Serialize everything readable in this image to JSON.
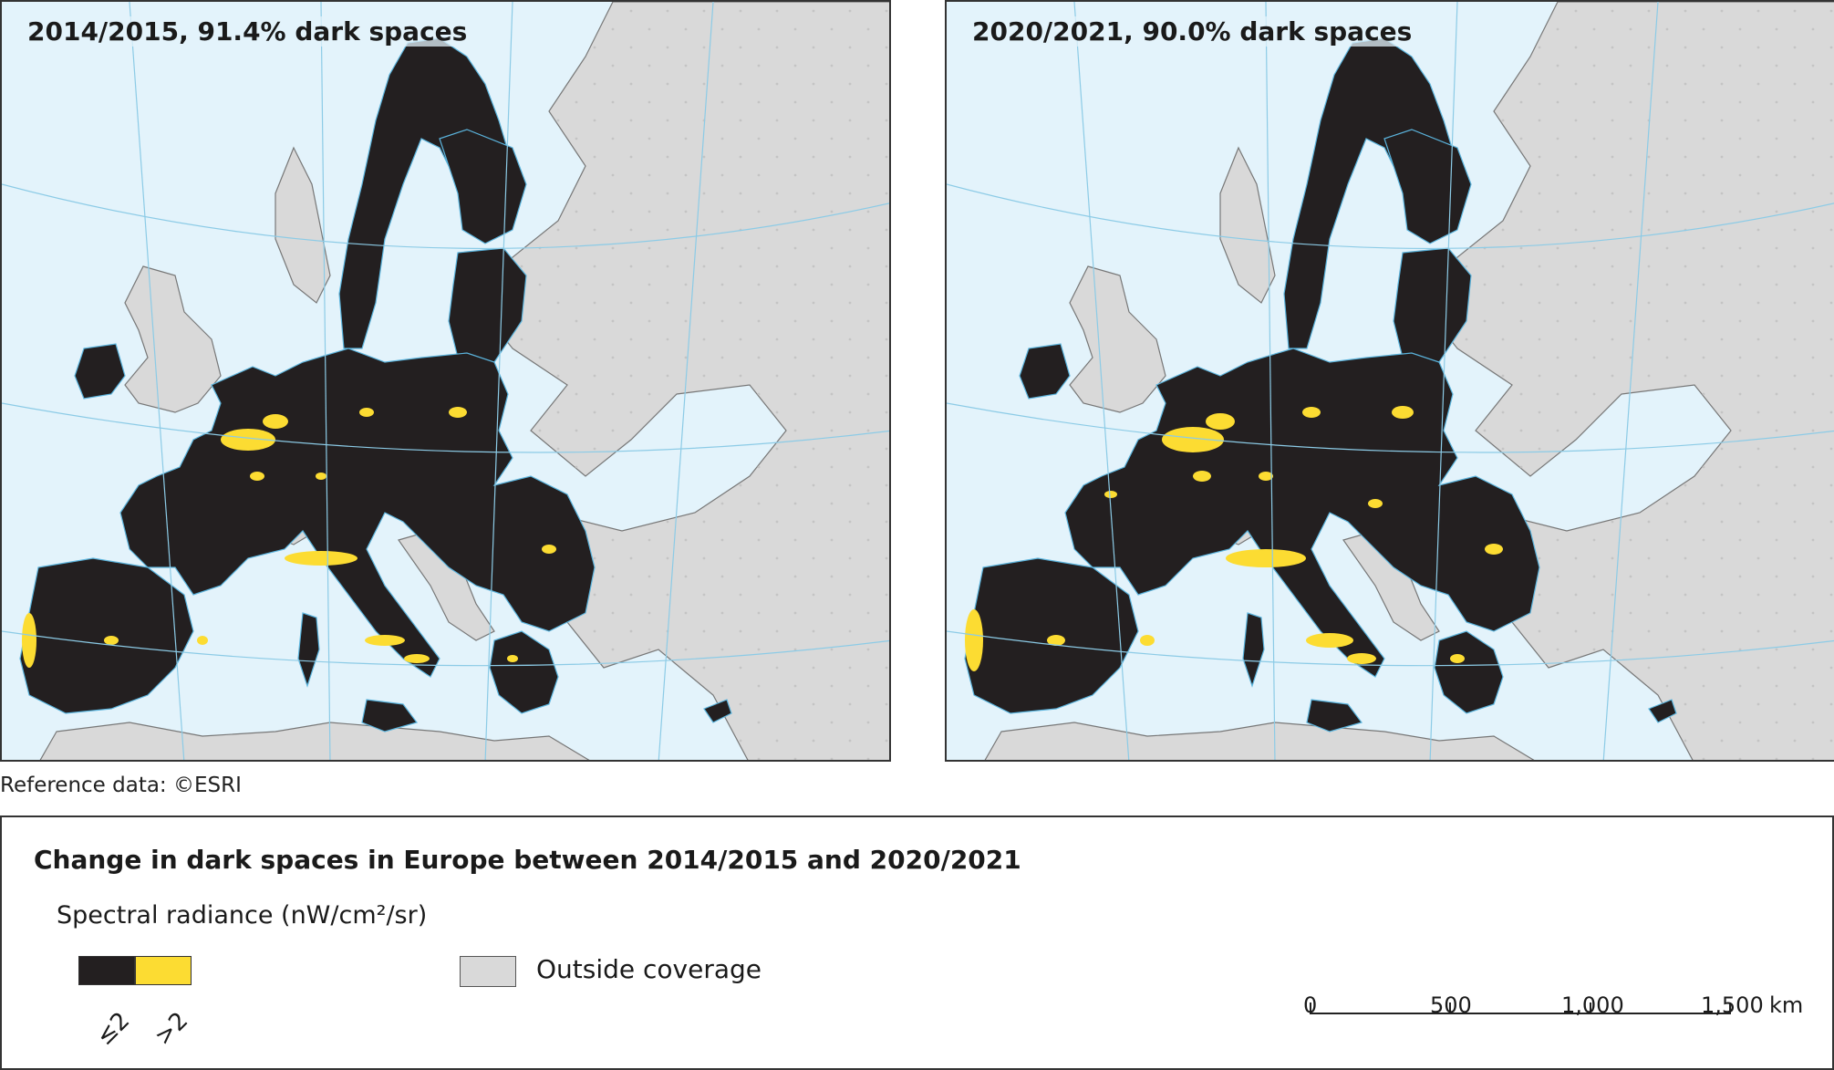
{
  "maps": [
    {
      "title": "2014/2015, 91.4% dark spaces",
      "year_span": "2014/2015",
      "dark_spaces_percent": 91.4
    },
    {
      "title": "2020/2021, 90.0% dark spaces",
      "year_span": "2020/2021",
      "dark_spaces_percent": 90.0
    }
  ],
  "reference": "Reference data: ©ESRI",
  "legend": {
    "title": "Change in dark spaces in Europe between 2014/2015 and 2020/2021",
    "subtitle": "Spectral radiance (nW/cm²/sr)",
    "classes": [
      {
        "label": "≤2",
        "color": "#231f20"
      },
      {
        "label": ">2",
        "color": "#fcdc32"
      }
    ],
    "outside": {
      "label": "Outside coverage",
      "color": "#d9d9d9"
    }
  },
  "scale": {
    "ticks": [
      "0",
      "500",
      "1,000",
      "1,500"
    ],
    "unit": "km"
  },
  "colors": {
    "sea": "#e3f3fb",
    "land_outside": "#d9d9d9",
    "dark": "#231f20",
    "bright": "#fcdc32",
    "graticule": "#8ccbe6",
    "border": "#555555"
  }
}
